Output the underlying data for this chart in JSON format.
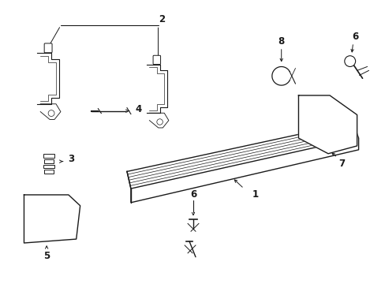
{
  "bg_color": "#ffffff",
  "line_color": "#1a1a1a",
  "text_color": "#1a1a1a",
  "fig_width": 4.89,
  "fig_height": 3.6,
  "dpi": 100,
  "label_fs": 8.5,
  "lw_main": 1.0,
  "lw_thin": 0.6,
  "lw_thick": 1.3
}
